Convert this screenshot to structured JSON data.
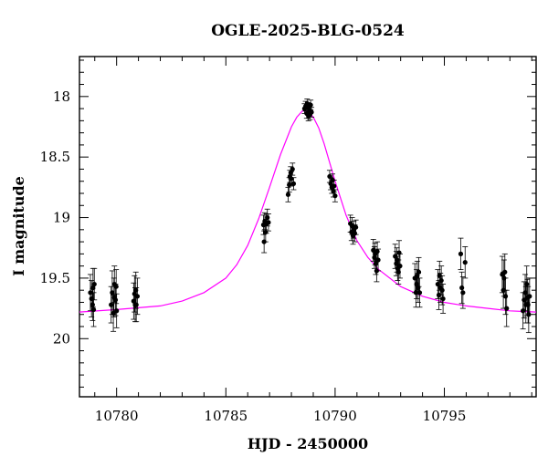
{
  "chart_data": {
    "type": "scatter",
    "title": "OGLE-2025-BLG-0524",
    "xlabel": "HJD - 2450000",
    "ylabel": "I magnitude",
    "xlim": [
      10778.3,
      10799.2
    ],
    "ylim": [
      20.48,
      17.67
    ],
    "y_inverted": true,
    "x_ticks": [
      10780,
      10785,
      10790,
      10795
    ],
    "y_ticks": [
      18,
      18.5,
      19,
      19.5,
      20
    ],
    "x_tick_labels": [
      "10780",
      "10785",
      "10790",
      "10795"
    ],
    "y_tick_labels": [
      "18",
      "18.5",
      "19",
      "19.5",
      "20"
    ],
    "grid": false,
    "legend": "none",
    "series": [
      {
        "type": "scatter",
        "color": "#000000",
        "points": [
          [
            10778.8,
            19.62,
            0.15
          ],
          [
            10778.85,
            19.67,
            0.15
          ],
          [
            10778.9,
            19.72,
            0.13
          ],
          [
            10778.92,
            19.58,
            0.16
          ],
          [
            10778.95,
            19.76,
            0.14
          ],
          [
            10778.98,
            19.55,
            0.13
          ],
          [
            10779.75,
            19.72,
            0.15
          ],
          [
            10779.8,
            19.62,
            0.18
          ],
          [
            10779.85,
            19.79,
            0.15
          ],
          [
            10779.88,
            19.66,
            0.16
          ],
          [
            10779.9,
            19.55,
            0.15
          ],
          [
            10779.95,
            19.68,
            0.13
          ],
          [
            10779.98,
            19.57,
            0.14
          ],
          [
            10780.0,
            19.77,
            0.14
          ],
          [
            10780.78,
            19.69,
            0.15
          ],
          [
            10780.82,
            19.63,
            0.15
          ],
          [
            10780.85,
            19.72,
            0.14
          ],
          [
            10780.88,
            19.6,
            0.15
          ],
          [
            10780.9,
            19.72,
            0.14
          ],
          [
            10780.95,
            19.65,
            0.15
          ],
          [
            10786.72,
            19.06,
            0.08
          ],
          [
            10786.75,
            19.2,
            0.09
          ],
          [
            10786.78,
            19.03,
            0.07
          ],
          [
            10786.82,
            19.12,
            0.08
          ],
          [
            10786.85,
            19.05,
            0.08
          ],
          [
            10786.9,
            19.0,
            0.07
          ],
          [
            10786.95,
            19.04,
            0.07
          ],
          [
            10787.85,
            18.81,
            0.06
          ],
          [
            10787.9,
            18.73,
            0.06
          ],
          [
            10787.93,
            18.66,
            0.05
          ],
          [
            10787.97,
            18.63,
            0.05
          ],
          [
            10788.0,
            18.68,
            0.06
          ],
          [
            10788.05,
            18.6,
            0.05
          ],
          [
            10788.1,
            18.72,
            0.05
          ],
          [
            10788.6,
            18.1,
            0.04
          ],
          [
            10788.65,
            18.08,
            0.04
          ],
          [
            10788.7,
            18.14,
            0.04
          ],
          [
            10788.72,
            18.06,
            0.04
          ],
          [
            10788.75,
            18.09,
            0.04
          ],
          [
            10788.78,
            18.16,
            0.04
          ],
          [
            10788.82,
            18.11,
            0.04
          ],
          [
            10788.85,
            18.15,
            0.04
          ],
          [
            10788.88,
            18.07,
            0.04
          ],
          [
            10788.92,
            18.13,
            0.04
          ],
          [
            10789.75,
            18.66,
            0.05
          ],
          [
            10789.8,
            18.72,
            0.05
          ],
          [
            10789.85,
            18.75,
            0.05
          ],
          [
            10789.88,
            18.69,
            0.05
          ],
          [
            10789.92,
            18.78,
            0.05
          ],
          [
            10789.95,
            18.74,
            0.05
          ],
          [
            10790.0,
            18.82,
            0.05
          ],
          [
            10790.7,
            19.05,
            0.07
          ],
          [
            10790.75,
            19.12,
            0.07
          ],
          [
            10790.78,
            19.07,
            0.07
          ],
          [
            10790.82,
            19.15,
            0.07
          ],
          [
            10790.85,
            19.1,
            0.07
          ],
          [
            10790.9,
            19.13,
            0.07
          ],
          [
            10790.95,
            19.08,
            0.06
          ],
          [
            10791.75,
            19.27,
            0.09
          ],
          [
            10791.8,
            19.33,
            0.09
          ],
          [
            10791.83,
            19.3,
            0.09
          ],
          [
            10791.86,
            19.38,
            0.09
          ],
          [
            10791.9,
            19.44,
            0.09
          ],
          [
            10791.93,
            19.28,
            0.08
          ],
          [
            10791.97,
            19.35,
            0.09
          ],
          [
            10792.75,
            19.32,
            0.1
          ],
          [
            10792.8,
            19.38,
            0.1
          ],
          [
            10792.83,
            19.35,
            0.1
          ],
          [
            10792.86,
            19.42,
            0.1
          ],
          [
            10792.9,
            19.45,
            0.1
          ],
          [
            10792.93,
            19.29,
            0.1
          ],
          [
            10792.97,
            19.4,
            0.1
          ],
          [
            10793.65,
            19.5,
            0.12
          ],
          [
            10793.7,
            19.62,
            0.12
          ],
          [
            10793.73,
            19.55,
            0.12
          ],
          [
            10793.76,
            19.48,
            0.12
          ],
          [
            10793.8,
            19.58,
            0.12
          ],
          [
            10793.83,
            19.45,
            0.12
          ],
          [
            10793.87,
            19.62,
            0.12
          ],
          [
            10794.7,
            19.55,
            0.12
          ],
          [
            10794.75,
            19.64,
            0.12
          ],
          [
            10794.78,
            19.48,
            0.12
          ],
          [
            10794.82,
            19.58,
            0.12
          ],
          [
            10794.86,
            19.52,
            0.12
          ],
          [
            10794.9,
            19.6,
            0.12
          ],
          [
            10794.94,
            19.67,
            0.12
          ],
          [
            10795.75,
            19.3,
            0.13
          ],
          [
            10795.8,
            19.58,
            0.13
          ],
          [
            10795.85,
            19.62,
            0.13
          ],
          [
            10795.95,
            19.37,
            0.13
          ],
          [
            10797.65,
            19.47,
            0.15
          ],
          [
            10797.7,
            19.6,
            0.15
          ],
          [
            10797.73,
            19.5,
            0.15
          ],
          [
            10797.77,
            19.45,
            0.15
          ],
          [
            10797.8,
            19.65,
            0.15
          ],
          [
            10797.85,
            19.75,
            0.15
          ],
          [
            10798.6,
            19.77,
            0.15
          ],
          [
            10798.65,
            19.68,
            0.15
          ],
          [
            10798.7,
            19.62,
            0.15
          ],
          [
            10798.73,
            19.72,
            0.15
          ],
          [
            10798.77,
            19.55,
            0.15
          ],
          [
            10798.8,
            19.66,
            0.15
          ],
          [
            10798.83,
            19.72,
            0.15
          ],
          [
            10798.86,
            19.8,
            0.15
          ],
          [
            10798.9,
            19.65,
            0.15
          ]
        ]
      },
      {
        "type": "line",
        "color": "#ff00ff",
        "x": [
          10778.3,
          10780,
          10782,
          10783,
          10784,
          10785,
          10785.5,
          10786,
          10786.5,
          10787,
          10787.5,
          10788,
          10788.25,
          10788.5,
          10788.75,
          10789,
          10789.25,
          10789.5,
          10790,
          10790.5,
          10791,
          10791.5,
          10792,
          10793,
          10794,
          10795,
          10796,
          10797,
          10798,
          10799.2
        ],
        "y": [
          19.78,
          19.76,
          19.73,
          19.69,
          19.62,
          19.5,
          19.39,
          19.23,
          19.01,
          18.75,
          18.48,
          18.25,
          18.17,
          18.12,
          18.12,
          18.17,
          18.26,
          18.39,
          18.7,
          18.98,
          19.19,
          19.33,
          19.43,
          19.57,
          19.65,
          19.7,
          19.73,
          19.75,
          19.77,
          19.78
        ]
      }
    ]
  }
}
